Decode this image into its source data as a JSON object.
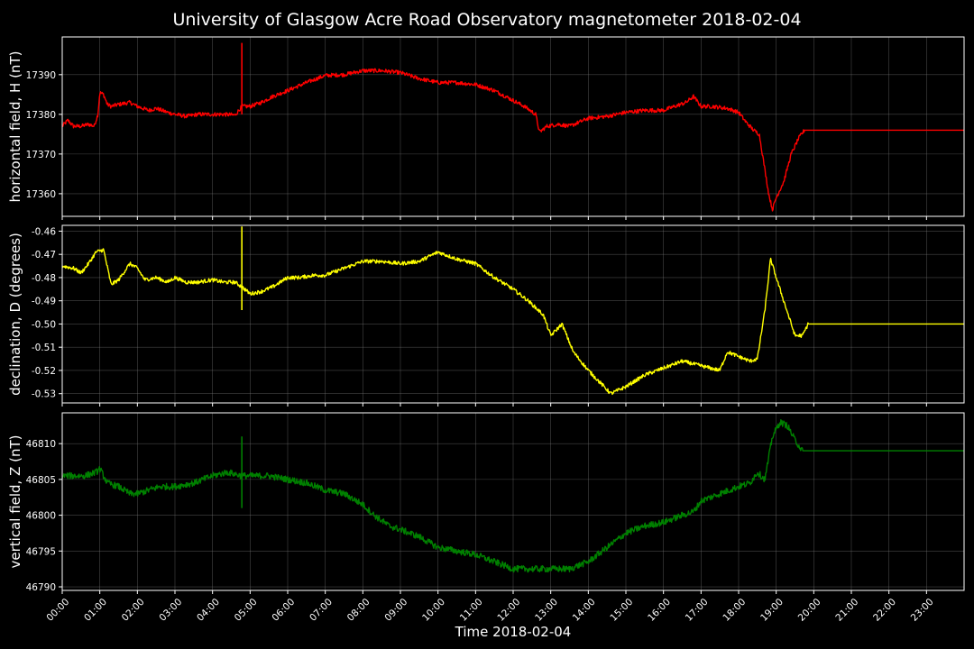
{
  "chart_data": {
    "type": "line",
    "title": "University of Glasgow Acre Road Observatory magnetometer 2018-02-04",
    "xlabel": "Time 2018-02-04",
    "x_unit": "hours",
    "xlim": [
      0,
      24
    ],
    "x_ticks": [
      0,
      1,
      2,
      3,
      4,
      5,
      6,
      7,
      8,
      9,
      10,
      11,
      12,
      13,
      14,
      15,
      16,
      17,
      18,
      19,
      20,
      21,
      22,
      23
    ],
    "x_tick_labels": [
      "00:00",
      "01:00",
      "02:00",
      "03:00",
      "04:00",
      "05:00",
      "06:00",
      "07:00",
      "08:00",
      "09:00",
      "10:00",
      "11:00",
      "12:00",
      "13:00",
      "14:00",
      "15:00",
      "16:00",
      "17:00",
      "18:00",
      "19:00",
      "20:00",
      "21:00",
      "22:00",
      "23:00"
    ],
    "background": "#000000",
    "grid": true,
    "panels": [
      {
        "ylabel": "horizontal field, H (nT)",
        "color": "#ff0000",
        "ylim": [
          17354.3,
          17399.5
        ],
        "y_ticks": [
          17360,
          17370,
          17380,
          17390
        ],
        "y_tick_labels": [
          "17360",
          "17370",
          "17380",
          "17390"
        ],
        "noise": 0.5,
        "spike": {
          "x": 4.78,
          "y_min": 17380,
          "y_max": 17398
        },
        "x": [
          0,
          0.15,
          0.3,
          0.5,
          0.7,
          0.85,
          0.95,
          1.0,
          1.1,
          1.2,
          1.3,
          1.5,
          1.8,
          2.0,
          2.3,
          2.5,
          2.8,
          3.0,
          3.3,
          3.6,
          4.0,
          4.3,
          4.6,
          4.78,
          5.0,
          5.3,
          5.6,
          6.0,
          6.5,
          7.0,
          7.5,
          8.0,
          8.5,
          9.0,
          9.5,
          10.0,
          10.5,
          11.0,
          11.5,
          12.0,
          12.3,
          12.6,
          12.7,
          12.9,
          13.2,
          13.5,
          14.0,
          14.5,
          15.0,
          15.5,
          16.0,
          16.3,
          16.6,
          16.8,
          17.0,
          17.3,
          17.7,
          18.0,
          18.2,
          18.4,
          18.55,
          18.7,
          18.8,
          18.9,
          19.0,
          19.2,
          19.4,
          19.6,
          19.75,
          24
        ],
        "y": [
          17377,
          17378.5,
          17377,
          17377,
          17377.5,
          17377,
          17380,
          17385.5,
          17385,
          17382.5,
          17382,
          17382.5,
          17383,
          17382,
          17381,
          17381.5,
          17380.5,
          17380,
          17379.5,
          17380,
          17380,
          17380,
          17379.8,
          17382,
          17382,
          17383,
          17384.5,
          17386,
          17388,
          17389.8,
          17390,
          17391,
          17391,
          17390.5,
          17389,
          17388,
          17388,
          17387.5,
          17386,
          17383.5,
          17382,
          17380,
          17375.5,
          17377,
          17377.5,
          17377,
          17379,
          17379.5,
          17380.5,
          17381,
          17381,
          17382,
          17383,
          17384.5,
          17382,
          17382,
          17381.5,
          17380.5,
          17378,
          17376,
          17375,
          17366,
          17360,
          17356,
          17359,
          17363,
          17370,
          17374,
          17376,
          17376
        ]
      },
      {
        "ylabel": "declination, D (degrees)",
        "color": "#ffff00",
        "ylim": [
          -0.534,
          -0.4575
        ],
        "y_ticks": [
          -0.53,
          -0.52,
          -0.51,
          -0.5,
          -0.49,
          -0.48,
          -0.47,
          -0.46
        ],
        "y_tick_labels": [
          "-0.53",
          "-0.52",
          "-0.51",
          "-0.50",
          "-0.49",
          "-0.48",
          "-0.47",
          "-0.46"
        ],
        "noise": 0.0008,
        "spike": {
          "x": 4.78,
          "y_min": -0.494,
          "y_max": -0.458
        },
        "x": [
          0,
          0.3,
          0.5,
          0.7,
          0.9,
          1.1,
          1.3,
          1.5,
          1.8,
          2.0,
          2.2,
          2.5,
          2.8,
          3.0,
          3.3,
          3.6,
          4.0,
          4.3,
          4.6,
          4.78,
          5.0,
          5.3,
          5.6,
          6.0,
          6.3,
          6.7,
          7.0,
          7.5,
          8.0,
          8.5,
          9.0,
          9.5,
          10.0,
          10.5,
          11.0,
          11.5,
          12.0,
          12.4,
          12.8,
          13.0,
          13.3,
          13.6,
          14.0,
          14.3,
          14.6,
          15.0,
          15.5,
          16.0,
          16.5,
          17.0,
          17.5,
          17.7,
          18.0,
          18.3,
          18.5,
          18.7,
          18.85,
          19.0,
          19.2,
          19.5,
          19.7,
          19.85,
          24
        ],
        "y": [
          -0.475,
          -0.476,
          -0.478,
          -0.474,
          -0.469,
          -0.468,
          -0.483,
          -0.481,
          -0.474,
          -0.476,
          -0.481,
          -0.48,
          -0.482,
          -0.48,
          -0.482,
          -0.482,
          -0.481,
          -0.482,
          -0.482,
          -0.484,
          -0.487,
          -0.486,
          -0.484,
          -0.48,
          -0.48,
          -0.479,
          -0.479,
          -0.476,
          -0.473,
          -0.473,
          -0.474,
          -0.473,
          -0.469,
          -0.472,
          -0.474,
          -0.48,
          -0.485,
          -0.49,
          -0.496,
          -0.505,
          -0.5,
          -0.512,
          -0.52,
          -0.525,
          -0.53,
          -0.527,
          -0.522,
          -0.519,
          -0.516,
          -0.518,
          -0.52,
          -0.512,
          -0.514,
          -0.516,
          -0.515,
          -0.494,
          -0.472,
          -0.48,
          -0.49,
          -0.505,
          -0.505,
          -0.5,
          -0.5
        ]
      },
      {
        "ylabel": "vertical field, Z (nT)",
        "color": "#008000",
        "ylim": [
          46789.5,
          46814.3
        ],
        "y_ticks": [
          46790,
          46795,
          46800,
          46805,
          46810
        ],
        "y_tick_labels": [
          "46790",
          "46795",
          "46800",
          "46805",
          "46810"
        ],
        "noise": 0.45,
        "spike": {
          "x": 4.78,
          "y_min": 46801,
          "y_max": 46811
        },
        "x": [
          0,
          0.3,
          0.6,
          0.9,
          1.0,
          1.2,
          1.5,
          1.8,
          2.0,
          2.3,
          2.6,
          3.0,
          3.5,
          4.0,
          4.4,
          4.78,
          5.0,
          5.5,
          6.0,
          6.5,
          7.0,
          7.5,
          8.0,
          8.3,
          8.7,
          9.0,
          9.5,
          10.0,
          10.5,
          11.0,
          11.5,
          12.0,
          12.5,
          13.0,
          13.5,
          14.0,
          14.5,
          15.0,
          15.5,
          16.0,
          16.5,
          16.8,
          17.0,
          17.5,
          18.0,
          18.3,
          18.5,
          18.7,
          18.9,
          19.1,
          19.3,
          19.5,
          19.7,
          24
        ],
        "y": [
          46805.5,
          46805.5,
          46805.5,
          46806,
          46806.5,
          46804.5,
          46804,
          46803,
          46803,
          46803.5,
          46804,
          46804,
          46804.5,
          46805.5,
          46806,
          46805.5,
          46805.5,
          46805.5,
          46805,
          46804.5,
          46803.5,
          46803,
          46801.5,
          46800,
          46798.5,
          46798,
          46797,
          46795.5,
          46795,
          46794.5,
          46793.5,
          46792.5,
          46792.5,
          46792.5,
          46792.5,
          46793.5,
          46795.5,
          46797.5,
          46798.5,
          46799,
          46800,
          46800.5,
          46802,
          46803,
          46804,
          46804.5,
          46806,
          46805,
          46811,
          46813,
          46812.5,
          46810.5,
          46809,
          46809
        ]
      }
    ]
  }
}
